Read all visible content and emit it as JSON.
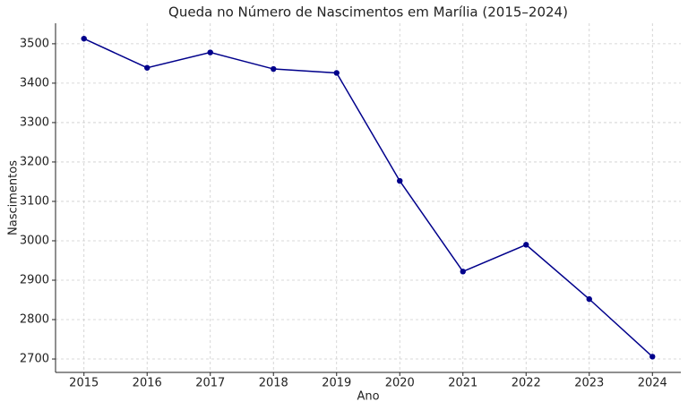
{
  "chart_data": {
    "type": "line",
    "title": "Queda no Número de Nascimentos em Marília (2015–2024)",
    "x_label": "Ano",
    "y_label": "Nascimentos",
    "x": [
      2015,
      2016,
      2017,
      2018,
      2019,
      2020,
      2021,
      2022,
      2023,
      2024
    ],
    "series": [
      {
        "name": "Nascimentos",
        "color": "#00008b",
        "values": [
          3513,
          3439,
          3478,
          3436,
          3426,
          3152,
          2922,
          2990,
          2852,
          2706
        ]
      }
    ],
    "xlim": [
      2014.55,
      2024.45
    ],
    "ylim": [
      2666,
      3552
    ],
    "xticks": [
      2015,
      2016,
      2017,
      2018,
      2019,
      2020,
      2021,
      2022,
      2023,
      2024
    ],
    "yticks": [
      2700,
      2800,
      2900,
      3000,
      3100,
      3200,
      3300,
      3400,
      3500
    ],
    "grid": true
  }
}
